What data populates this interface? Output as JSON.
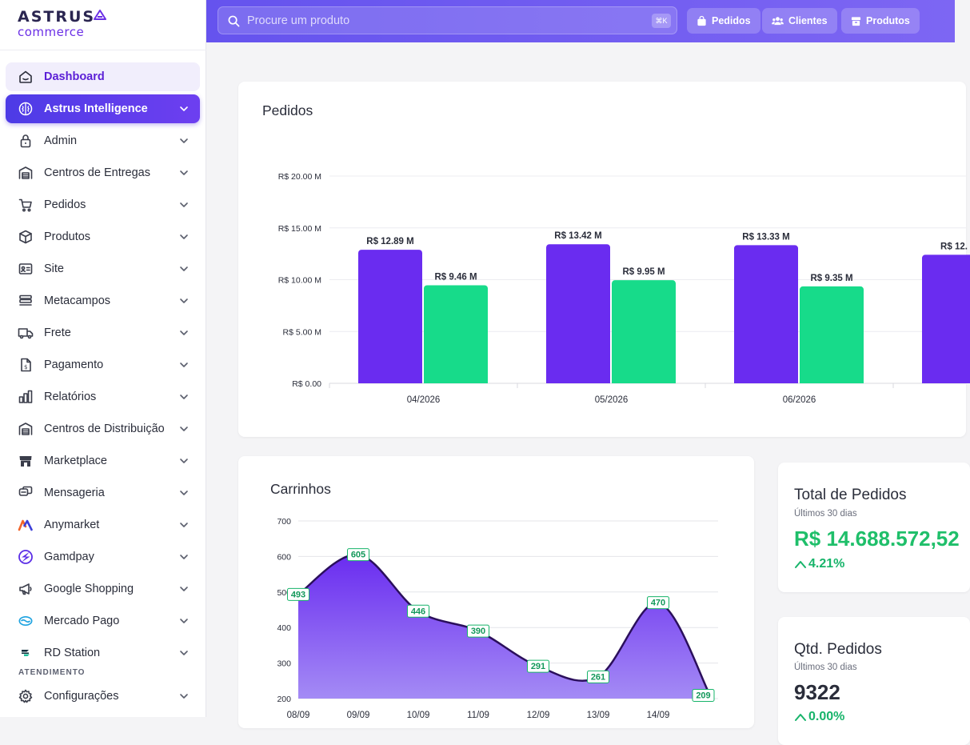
{
  "brand": {
    "name_top": "ASTRUS",
    "name_bottom": "commerce",
    "accent": "#6b2fe6"
  },
  "sidebar": {
    "items": [
      {
        "label": "Dashboard",
        "icon": "home-icon",
        "state": "active-light",
        "chevron": false
      },
      {
        "label": "Astrus Intelligence",
        "icon": "brain-icon",
        "state": "active-solid",
        "chevron": true
      },
      {
        "label": "Admin",
        "icon": "lock-icon",
        "chevron": true
      },
      {
        "label": "Centros de Entregas",
        "icon": "warehouse-icon",
        "chevron": true
      },
      {
        "label": "Pedidos",
        "icon": "cart-icon",
        "chevron": true
      },
      {
        "label": "Produtos",
        "icon": "box-icon",
        "chevron": true
      },
      {
        "label": "Site",
        "icon": "id-card-icon",
        "chevron": true
      },
      {
        "label": "Metacampos",
        "icon": "stack-icon",
        "chevron": true
      },
      {
        "label": "Frete",
        "icon": "truck-icon",
        "chevron": true
      },
      {
        "label": "Pagamento",
        "icon": "invoice-icon",
        "chevron": true
      },
      {
        "label": "Relatórios",
        "icon": "bar-chart-icon",
        "chevron": true
      },
      {
        "label": "Centros de Distribuição",
        "icon": "warehouse-icon",
        "chevron": true
      },
      {
        "label": "Marketplace",
        "icon": "store-icon",
        "chevron": true
      },
      {
        "label": "Mensageria",
        "icon": "messages-icon",
        "chevron": true
      },
      {
        "label": "Anymarket",
        "icon": "anymarket-logo-icon",
        "chevron": true
      },
      {
        "label": "Gamdpay",
        "icon": "gamdpay-logo-icon",
        "chevron": true
      },
      {
        "label": "Google Shopping",
        "icon": "megaphone-icon",
        "chevron": true
      },
      {
        "label": "Mercado Pago",
        "icon": "mercadopago-logo-icon",
        "chevron": true
      },
      {
        "label": "RD Station",
        "icon": "rdstation-logo-icon",
        "chevron": true
      }
    ],
    "section_label": "ATENDIMENTO",
    "section_items": [
      {
        "label": "Configurações",
        "icon": "gear-icon",
        "chevron": true
      }
    ]
  },
  "topbar": {
    "search_placeholder": "Procure um produto",
    "search_shortcut": "⌘K",
    "buttons": [
      {
        "label": "Pedidos",
        "icon": "bag-icon"
      },
      {
        "label": "Clientes",
        "icon": "users-icon"
      },
      {
        "label": "Produtos",
        "icon": "box-icon"
      }
    ]
  },
  "pedidos_card": {
    "title": "Pedidos",
    "chart_data": {
      "type": "bar",
      "categories": [
        "04/2026",
        "05/2026",
        "06/2026",
        ""
      ],
      "series": [
        {
          "values": [
            12.89,
            13.42,
            13.33,
            12.4
          ],
          "color": "#6a2cf0"
        },
        {
          "values": [
            9.46,
            9.95,
            9.35,
            null
          ],
          "color": "#17db8a"
        }
      ],
      "data_labels": [
        [
          "R$ 12.89 M",
          "R$ 13.42 M",
          "R$ 13.33 M",
          "R$ 12."
        ],
        [
          "R$ 9.46 M",
          "R$ 9.95 M",
          "R$ 9.35 M",
          ""
        ]
      ],
      "yticks": [
        "R$ 0.00",
        "R$ 5.00 M",
        "R$ 10.00 M",
        "R$ 15.00 M",
        "R$ 20.00 M"
      ],
      "ylim": [
        0,
        20
      ],
      "grid": true
    }
  },
  "carrinhos_card": {
    "title": "Carrinhos",
    "chart_data": {
      "type": "area",
      "x": [
        "08/09",
        "09/09",
        "10/09",
        "11/09",
        "12/09",
        "13/09",
        "14/09",
        ""
      ],
      "values": [
        493,
        605,
        446,
        390,
        291,
        261,
        470,
        209
      ],
      "yticks": [
        "200",
        "300",
        "400",
        "500",
        "600",
        "700"
      ],
      "ylim": [
        200,
        700
      ],
      "grid": true,
      "colors": {
        "line": "#2b0f5c",
        "fill_top": "#6a2cf0",
        "fill_bottom": "#a48bf5",
        "label": "#17b46a"
      }
    }
  },
  "total_pedidos": {
    "title": "Total de Pedidos",
    "subtitle": "Últimos 30 dias",
    "value": "R$ 14.688.572,52",
    "change": "4.21%",
    "value_color": "#1fbf6a"
  },
  "qtd_pedidos": {
    "title": "Qtd. Pedidos",
    "subtitle": "Últimos 30 dias",
    "value": "9322",
    "change": "0.00%"
  }
}
